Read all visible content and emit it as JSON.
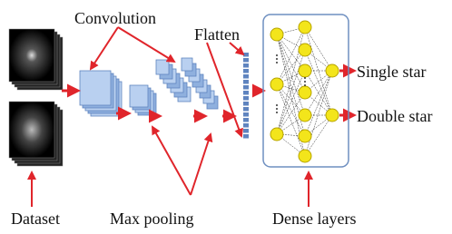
{
  "labels": {
    "convolution": "Convolution",
    "flatten": "Flatten",
    "single_star": "Single star",
    "double_star": "Double star",
    "dataset": "Dataset",
    "max_pooling": "Max pooling",
    "dense_layers": "Dense layers"
  }
}
